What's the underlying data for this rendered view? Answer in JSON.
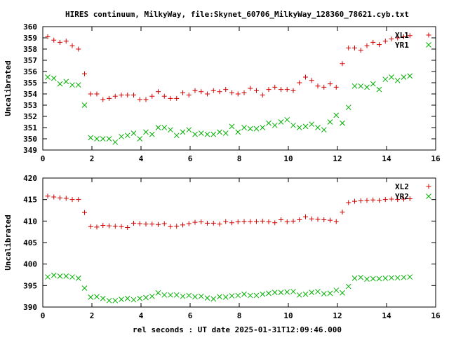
{
  "title": "HIRES continuum, MilkyWay, file:Skynet_60706_MilkyWay_128360_78621.cyb.txt",
  "xlabel": "rel seconds : UT date 2025-01-31T12:09:46.000",
  "colors": {
    "red": "#d40000",
    "green": "#00b000"
  },
  "chart_data": [
    {
      "type": "scatter",
      "ylabel": "Uncalibrated",
      "xlim": [
        0,
        16
      ],
      "ylim": [
        349,
        360
      ],
      "x_ticks": [
        "0",
        "2",
        "4",
        "6",
        "8",
        "10",
        "12",
        "14",
        "16"
      ],
      "y_ticks": [
        "349",
        "350",
        "351",
        "352",
        "353",
        "354",
        "355",
        "356",
        "357",
        "358",
        "359",
        "360"
      ],
      "legend_position": "top-right",
      "x": [
        0.2,
        0.45,
        0.7,
        0.95,
        1.2,
        1.45,
        1.7,
        1.95,
        2.2,
        2.45,
        2.7,
        2.95,
        3.2,
        3.45,
        3.7,
        3.95,
        4.2,
        4.45,
        4.7,
        4.95,
        5.2,
        5.45,
        5.7,
        5.95,
        6.2,
        6.45,
        6.7,
        6.95,
        7.2,
        7.45,
        7.7,
        7.95,
        8.2,
        8.45,
        8.7,
        8.95,
        9.2,
        9.45,
        9.7,
        9.95,
        10.2,
        10.45,
        10.7,
        10.95,
        11.2,
        11.45,
        11.7,
        11.95,
        12.2,
        12.45,
        12.7,
        12.95,
        13.2,
        13.45,
        13.7,
        13.95,
        14.2,
        14.45,
        14.7,
        14.95
      ],
      "series": [
        {
          "name": "XL1",
          "marker": "+",
          "color": "#d40000",
          "values": [
            359.1,
            358.8,
            358.6,
            358.7,
            358.3,
            358.0,
            355.8,
            354.0,
            354.0,
            353.5,
            353.6,
            353.8,
            353.9,
            353.9,
            353.9,
            353.5,
            353.5,
            353.8,
            354.2,
            353.8,
            353.6,
            353.6,
            354.1,
            353.9,
            354.3,
            354.2,
            354.0,
            354.3,
            354.2,
            354.4,
            354.1,
            354.0,
            354.1,
            354.5,
            354.3,
            353.9,
            354.4,
            354.6,
            354.4,
            354.4,
            354.3,
            355.0,
            355.5,
            355.2,
            354.7,
            354.6,
            354.9,
            354.6,
            356.7,
            358.1,
            358.1,
            357.9,
            358.3,
            358.6,
            358.4,
            358.7,
            358.9,
            359.0,
            359.1,
            359.2
          ]
        },
        {
          "name": "YR1",
          "marker": "x",
          "color": "#00b000",
          "values": [
            355.5,
            355.4,
            354.9,
            355.1,
            354.8,
            354.8,
            353.0,
            350.1,
            350.0,
            350.0,
            350.0,
            349.7,
            350.2,
            350.3,
            350.5,
            350.0,
            350.6,
            350.4,
            351.0,
            351.0,
            350.8,
            350.3,
            350.6,
            350.8,
            350.4,
            350.5,
            350.4,
            350.4,
            350.6,
            350.5,
            351.1,
            350.6,
            351.0,
            350.9,
            350.9,
            351.0,
            351.4,
            351.2,
            351.5,
            351.7,
            351.2,
            351.0,
            351.1,
            351.3,
            351.0,
            350.8,
            351.5,
            352.1,
            351.4,
            352.8,
            354.7,
            354.7,
            354.6,
            354.9,
            354.4,
            355.3,
            355.5,
            355.2,
            355.5,
            355.6
          ]
        }
      ]
    },
    {
      "type": "scatter",
      "ylabel": "Uncalibrated",
      "xlim": [
        0,
        16
      ],
      "ylim": [
        390,
        420
      ],
      "x_ticks": [
        "0",
        "2",
        "4",
        "6",
        "8",
        "10",
        "12",
        "14",
        "16"
      ],
      "y_ticks": [
        "390",
        "395",
        "400",
        "405",
        "410",
        "415",
        "420"
      ],
      "legend_position": "top-right",
      "x": [
        0.2,
        0.45,
        0.7,
        0.95,
        1.2,
        1.45,
        1.7,
        1.95,
        2.2,
        2.45,
        2.7,
        2.95,
        3.2,
        3.45,
        3.7,
        3.95,
        4.2,
        4.45,
        4.7,
        4.95,
        5.2,
        5.45,
        5.7,
        5.95,
        6.2,
        6.45,
        6.7,
        6.95,
        7.2,
        7.45,
        7.7,
        7.95,
        8.2,
        8.45,
        8.7,
        8.95,
        9.2,
        9.45,
        9.7,
        9.95,
        10.2,
        10.45,
        10.7,
        10.95,
        11.2,
        11.45,
        11.7,
        11.95,
        12.2,
        12.45,
        12.7,
        12.95,
        13.2,
        13.45,
        13.7,
        13.95,
        14.2,
        14.45,
        14.7,
        14.95
      ],
      "series": [
        {
          "name": "XL2",
          "marker": "+",
          "color": "#d40000",
          "values": [
            415.8,
            415.6,
            415.4,
            415.3,
            415.0,
            415.0,
            412.0,
            408.7,
            408.6,
            409.0,
            408.9,
            408.8,
            408.7,
            408.5,
            409.5,
            409.4,
            409.3,
            409.3,
            409.2,
            409.4,
            408.7,
            408.8,
            409.1,
            409.4,
            409.7,
            409.8,
            409.5,
            409.5,
            409.3,
            409.9,
            409.6,
            409.8,
            409.9,
            409.9,
            409.9,
            410.0,
            409.8,
            409.6,
            410.3,
            409.8,
            410.0,
            410.3,
            411.0,
            410.5,
            410.4,
            410.3,
            410.2,
            409.9,
            412.1,
            414.3,
            414.6,
            414.7,
            414.8,
            414.9,
            414.8,
            415.0,
            415.1,
            415.0,
            415.1,
            415.2
          ]
        },
        {
          "name": "YR2",
          "marker": "x",
          "color": "#00b000",
          "values": [
            397.0,
            397.4,
            397.2,
            397.2,
            397.0,
            396.7,
            394.4,
            392.3,
            392.4,
            392.0,
            391.5,
            391.5,
            391.8,
            392.0,
            391.7,
            392.0,
            392.2,
            392.5,
            393.3,
            392.8,
            392.8,
            392.8,
            392.5,
            392.7,
            392.4,
            392.5,
            392.1,
            391.9,
            392.4,
            392.3,
            392.6,
            392.7,
            393.0,
            392.7,
            392.7,
            393.0,
            393.2,
            393.4,
            393.4,
            393.5,
            393.6,
            392.8,
            393.0,
            393.4,
            393.6,
            393.1,
            393.2,
            393.9,
            393.3,
            394.8,
            396.7,
            396.9,
            396.5,
            396.6,
            396.6,
            396.7,
            396.8,
            396.8,
            396.9,
            397.0
          ]
        }
      ]
    }
  ]
}
